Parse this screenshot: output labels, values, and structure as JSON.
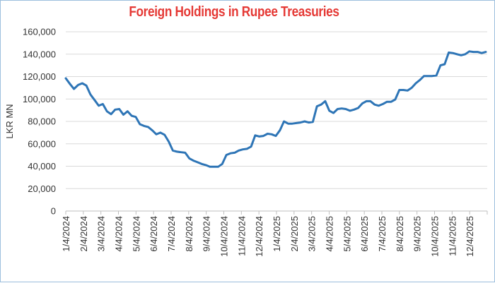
{
  "chart_data": {
    "type": "line",
    "title": "Foreign Holdings in Rupee Treasuries",
    "ylabel": "LKR MN",
    "xlabel": "",
    "ylim": [
      0,
      160000
    ],
    "yticks": [
      "0",
      "20,000",
      "40,000",
      "60,000",
      "80,000",
      "100,000",
      "120,000",
      "140,000",
      "160,000"
    ],
    "xticks": [
      "1/4/2024",
      "2/4/2024",
      "3/4/2024",
      "4/4/2024",
      "5/4/2024",
      "6/4/2024",
      "7/4/2024",
      "8/4/2024",
      "9/4/2024",
      "10/4/2024",
      "11/4/2024",
      "12/4/2024",
      "1/4/2025",
      "2/4/2025",
      "3/4/2025",
      "4/4/2025",
      "5/4/2025",
      "6/4/2025",
      "7/4/2025",
      "8/4/2025",
      "9/4/2025",
      "10/4/2025",
      "11/4/2025",
      "12/4/2025"
    ],
    "grid": true,
    "legend": "none",
    "line_color": "#2e75b6",
    "series": [
      {
        "values": [
          118500,
          113500,
          109000,
          112500,
          114000,
          112000,
          104000,
          99000,
          94000,
          95500,
          89000,
          86500,
          90500,
          91000,
          86000,
          89000,
          85000,
          84000,
          77500,
          76000,
          75000,
          72000,
          68500,
          70000,
          68000,
          62000,
          54000,
          53000,
          52500,
          52000,
          47000,
          45000,
          43500,
          42000,
          41000,
          39500,
          39500,
          39500,
          42000,
          50000,
          51500,
          52000,
          54000,
          55000,
          55500,
          57500,
          67500,
          66500,
          67000,
          69000,
          68500,
          67000,
          72000,
          80000,
          78000,
          78000,
          78500,
          79000,
          80000,
          79000,
          79500,
          93500,
          95000,
          98000,
          89500,
          87500,
          91000,
          91500,
          91000,
          89500,
          90500,
          92000,
          96000,
          98000,
          98000,
          95000,
          94000,
          95500,
          97500,
          97500,
          99500,
          108000,
          108000,
          107500,
          110000,
          114000,
          117000,
          120500,
          120500,
          120500,
          121000,
          130000,
          131000,
          141500,
          141000,
          140000,
          139000,
          140000,
          142500,
          142000,
          142000,
          141000,
          142000
        ]
      }
    ]
  }
}
